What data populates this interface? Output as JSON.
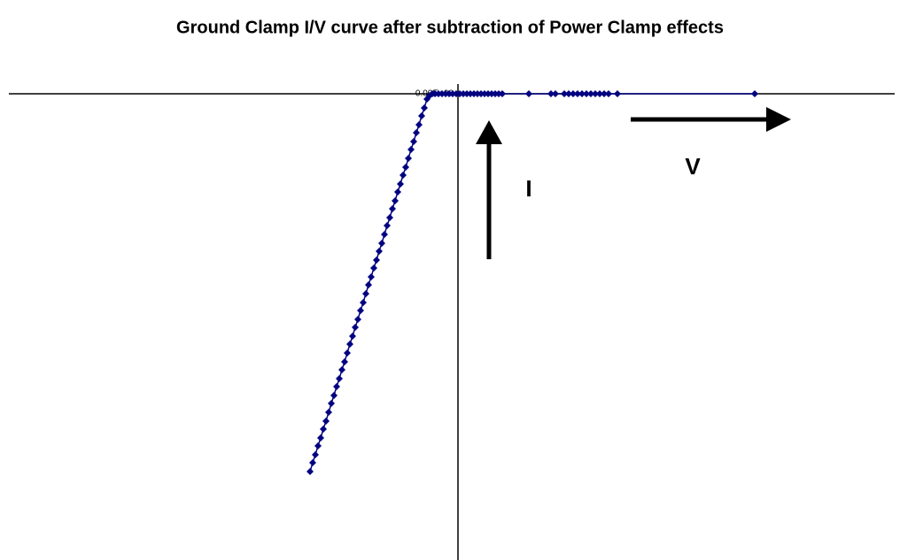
{
  "chart_data": {
    "type": "line",
    "title": "Ground Clamp I/V curve after subtraction of Power Clamp effects",
    "annotations": [
      "I",
      "V"
    ],
    "xlim": [
      -5.07,
      4.93
    ],
    "ylim": [
      -5.27,
      0.26
    ],
    "yticks": [
      {
        "value": 0,
        "label": "0.00E+00"
      }
    ],
    "series": [
      {
        "color": "#000080",
        "x": [
          -1.67,
          -1.64,
          -1.61,
          -1.58,
          -1.55,
          -1.52,
          -1.49,
          -1.46,
          -1.43,
          -1.4,
          -1.37,
          -1.34,
          -1.31,
          -1.28,
          -1.25,
          -1.22,
          -1.19,
          -1.16,
          -1.13,
          -1.1,
          -1.07,
          -1.04,
          -1.01,
          -0.98,
          -0.95,
          -0.92,
          -0.89,
          -0.86,
          -0.83,
          -0.8,
          -0.77,
          -0.74,
          -0.71,
          -0.68,
          -0.65,
          -0.62,
          -0.59,
          -0.56,
          -0.53,
          -0.5,
          -0.47,
          -0.44,
          -0.41,
          -0.38,
          -0.35,
          -0.32,
          -0.29,
          -0.26,
          -0.22,
          -0.18,
          -0.14,
          -0.1,
          -0.06,
          -0.02,
          0.02,
          0.06,
          0.1,
          0.14,
          0.18,
          0.22,
          0.26,
          0.3,
          0.34,
          0.38,
          0.42,
          0.46,
          0.5,
          0.8,
          1.05,
          1.1,
          1.2,
          1.25,
          1.3,
          1.35,
          1.4,
          1.45,
          1.5,
          1.55,
          1.6,
          1.65,
          1.7,
          1.8,
          3.35
        ],
        "values": [
          -4.27,
          -4.17,
          -4.08,
          -3.98,
          -3.89,
          -3.79,
          -3.7,
          -3.6,
          -3.5,
          -3.41,
          -3.31,
          -3.22,
          -3.12,
          -3.03,
          -2.93,
          -2.83,
          -2.74,
          -2.64,
          -2.55,
          -2.45,
          -2.36,
          -2.26,
          -2.16,
          -2.07,
          -1.97,
          -1.88,
          -1.78,
          -1.69,
          -1.59,
          -1.49,
          -1.4,
          -1.3,
          -1.21,
          -1.11,
          -1.02,
          -0.92,
          -0.83,
          -0.73,
          -0.63,
          -0.54,
          -0.44,
          -0.35,
          -0.25,
          -0.16,
          -0.06,
          -0.02,
          0,
          0,
          0,
          0,
          0,
          0,
          0,
          0,
          0,
          0,
          0,
          0,
          0,
          0,
          0,
          0,
          0,
          0,
          0,
          0,
          0,
          0,
          0,
          0,
          0,
          0,
          0,
          0,
          0,
          0,
          0,
          0,
          0,
          0,
          0,
          0,
          0
        ]
      }
    ]
  }
}
